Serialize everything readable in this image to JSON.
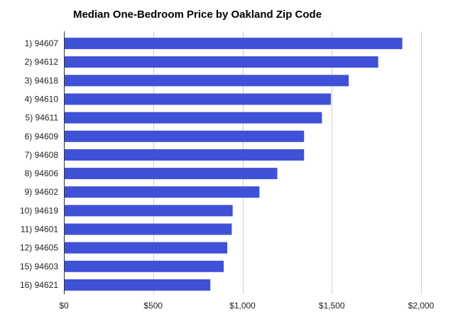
{
  "chart_data": {
    "type": "bar",
    "orientation": "horizontal",
    "title": "Median One-Bedroom Price by Oakland Zip Code",
    "xlabel": "",
    "ylabel": "",
    "categories": [
      "1) 94607",
      "2) 94612",
      "3) 94618",
      "4) 94610",
      "5) 94611",
      "6) 94609",
      "7) 94608",
      "8) 94606",
      "9) 94602",
      "10) 94619",
      "11) 94601",
      "12) 94605",
      "15) 94603",
      "16) 94621"
    ],
    "values": [
      1895,
      1760,
      1595,
      1495,
      1445,
      1345,
      1345,
      1195,
      1095,
      945,
      940,
      915,
      895,
      820
    ],
    "xlim": [
      0,
      2000
    ],
    "xticks": [
      0,
      500,
      1000,
      1500,
      2000
    ],
    "xtick_labels": [
      "$0",
      "$500",
      "$1,000",
      "$1,500",
      "$2,000"
    ],
    "grid": true,
    "bar_color": "#3f51d6"
  }
}
